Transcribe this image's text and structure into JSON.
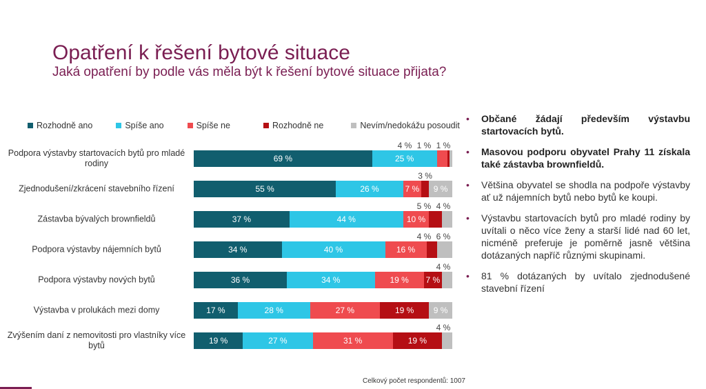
{
  "title": "Opatření k řešení bytové situace",
  "subtitle": "Jaká opatření by podle vás měla být k řešení bytové situace přijata?",
  "footer": "Celkový počet respondentů: 1007",
  "chart_data": {
    "type": "bar",
    "orientation": "horizontal-stacked-100",
    "categories": [
      "Podpora výstavby startovacích bytů pro mladé rodiny",
      "Zjednodušení/zkrácení stavebního řízení",
      "Zástavba bývalých brownfieldů",
      "Podpora výstavby nájemních bytů",
      "Podpora výstavby nových bytů",
      "Výstavba v prolukách mezi domy",
      "Zvýšením daní z nemovitosti pro vlastníky více bytů"
    ],
    "series": [
      {
        "name": "Rozhodně ano",
        "color": "#115e6e",
        "values": [
          69,
          55,
          37,
          34,
          36,
          17,
          19
        ]
      },
      {
        "name": "Spíše ano",
        "color": "#2ec6e6",
        "values": [
          25,
          26,
          44,
          40,
          34,
          28,
          27
        ]
      },
      {
        "name": "Spíše ne",
        "color": "#ef4b4f",
        "values": [
          4,
          7,
          10,
          16,
          19,
          27,
          31
        ]
      },
      {
        "name": "Rozhodně ne",
        "color": "#b50f14",
        "values": [
          1,
          3,
          5,
          4,
          7,
          19,
          19
        ]
      },
      {
        "name": "Nevím/nedokážu posoudit",
        "color": "#bfbfbf",
        "values": [
          1,
          9,
          4,
          6,
          4,
          9,
          4
        ]
      }
    ],
    "unit": "%",
    "legend": "top"
  },
  "bullets": [
    {
      "text": "Občané žádají především výstavbu startovacích bytů.",
      "bold": true
    },
    {
      "text": "Masovou podporu obyvatel Prahy 11 získala také zástavba brownfieldů.",
      "bold": true
    },
    {
      "text": "Většina obyvatel se shodla na podpoře výstavby ať už nájemních bytů nebo bytů ke koupi.",
      "bold": false
    },
    {
      "text": "Výstavbu startovacích bytů pro mladé rodiny by uvítali o něco více ženy a starší lidé nad 60 let, nicméně preferuje je poměrně jasně většina dotázaných napříč různými skupinami.",
      "bold": false
    },
    {
      "text": "81 % dotázaných by uvítalo zjednodušené stavební řízení",
      "bold": false
    }
  ]
}
